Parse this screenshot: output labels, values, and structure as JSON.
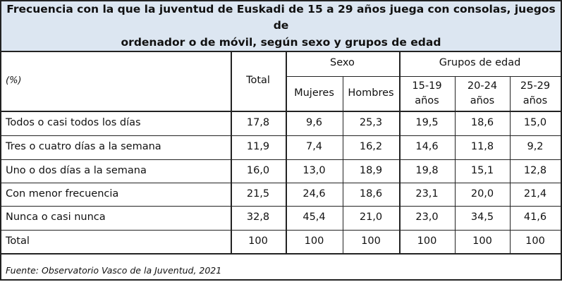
{
  "title": {
    "lines": [
      "Frecuencia con la que la juventud de Euskadi de 15 a 29 años juega con consolas, juegos de",
      "ordenador o de móvil, según sexo y grupos de edad"
    ]
  },
  "header": {
    "unit": "(%)",
    "total": "Total",
    "groups": [
      {
        "label": "Sexo",
        "columns": [
          "Mujeres",
          "Hombres"
        ]
      },
      {
        "label": "Grupos de edad",
        "columns": [
          "15-19 años",
          "20-24 años",
          "25-29 años"
        ]
      }
    ]
  },
  "rows": [
    {
      "label": "Todos o casi todos los días",
      "values": [
        "17,8",
        "9,6",
        "25,3",
        "19,5",
        "18,6",
        "15,0"
      ]
    },
    {
      "label": "Tres o cuatro días a la semana",
      "values": [
        "11,9",
        "7,4",
        "16,2",
        "14,6",
        "11,8",
        "9,2"
      ]
    },
    {
      "label": "Uno o dos días a la semana",
      "values": [
        "16,0",
        "13,0",
        "18,9",
        "19,8",
        "15,1",
        "12,8"
      ]
    },
    {
      "label": "Con menor frecuencia",
      "values": [
        "21,5",
        "24,6",
        "18,6",
        "23,1",
        "20,0",
        "21,4"
      ]
    },
    {
      "label": "Nunca o casi nunca",
      "values": [
        "32,8",
        "45,4",
        "21,0",
        "23,0",
        "34,5",
        "41,6"
      ]
    },
    {
      "label": "Total",
      "values": [
        "100",
        "100",
        "100",
        "100",
        "100",
        "100"
      ]
    }
  ],
  "footer": {
    "source": "Fuente: Observatorio Vasco de la Juventud, 2021"
  }
}
